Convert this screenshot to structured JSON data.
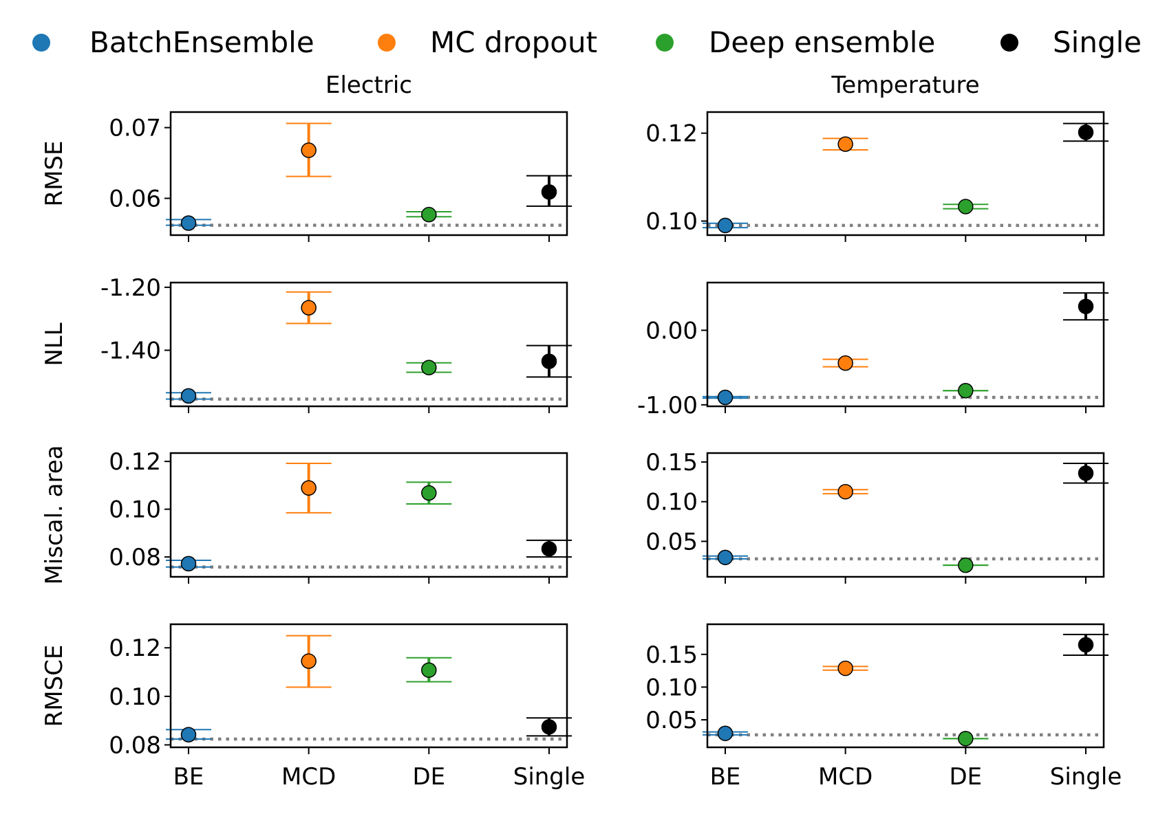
{
  "legend": {
    "placement": "top",
    "items": [
      {
        "label": "BatchEnsemble",
        "color": "#1f77b4"
      },
      {
        "label": "MC dropout",
        "color": "#ff7f0e"
      },
      {
        "label": "Deep ensemble",
        "color": "#2ca02c"
      },
      {
        "label": "Single",
        "color": "#000000"
      }
    ]
  },
  "columns": [
    "Electric",
    "Temperature"
  ],
  "chart_data": [
    {
      "type": "scatter",
      "column": "Electric",
      "ylabel": "RMSE",
      "categories": [
        "BE",
        "MCD",
        "DE",
        "Single"
      ],
      "values": [
        0.0565,
        0.0668,
        0.0577,
        0.0609
      ],
      "err_low": [
        0.0562,
        0.0631,
        0.0574,
        0.0589
      ],
      "err_high": [
        0.057,
        0.0706,
        0.0581,
        0.0632
      ],
      "yticks": [
        0.06,
        0.07
      ],
      "ytick_labels": [
        "0.06",
        "0.07"
      ],
      "ylim": [
        0.0548,
        0.0722
      ],
      "baseline": 0.0562
    },
    {
      "type": "scatter",
      "column": "Temperature",
      "ylabel": "",
      "categories": [
        "BE",
        "MCD",
        "DE",
        "Single"
      ],
      "values": [
        0.099,
        0.1175,
        0.1033,
        0.1202
      ],
      "err_low": [
        0.0985,
        0.1162,
        0.1028,
        0.1182
      ],
      "err_high": [
        0.0995,
        0.1188,
        0.1038,
        0.1222
      ],
      "yticks": [
        0.1,
        0.12
      ],
      "ytick_labels": [
        "0.10",
        "0.12"
      ],
      "ylim": [
        0.0968,
        0.1248
      ],
      "baseline": 0.099
    },
    {
      "type": "scatter",
      "column": "Electric",
      "ylabel": "NLL",
      "categories": [
        "BE",
        "MCD",
        "DE",
        "Single"
      ],
      "values": [
        -1.545,
        -1.265,
        -1.455,
        -1.435
      ],
      "err_low": [
        -1.555,
        -1.315,
        -1.47,
        -1.485
      ],
      "err_high": [
        -1.535,
        -1.215,
        -1.44,
        -1.385
      ],
      "yticks": [
        -1.2,
        -1.4
      ],
      "ytick_labels": [
        "-1.20",
        "-1.40"
      ],
      "ylim": [
        -1.578,
        -1.185
      ],
      "baseline": -1.555
    },
    {
      "type": "scatter",
      "column": "Temperature",
      "ylabel": "",
      "categories": [
        "BE",
        "MCD",
        "DE",
        "Single"
      ],
      "values": [
        -0.9,
        -0.44,
        -0.81,
        0.32
      ],
      "err_low": [
        -0.91,
        -0.49,
        -0.81,
        0.14
      ],
      "err_high": [
        -0.89,
        -0.39,
        -0.81,
        0.5
      ],
      "yticks": [
        0.0,
        -1.0
      ],
      "ytick_labels": [
        "0.00",
        "-1.00"
      ],
      "ylim": [
        -1.02,
        0.64
      ],
      "baseline": -0.9
    },
    {
      "type": "scatter",
      "column": "Electric",
      "ylabel": "Miscal. area",
      "categories": [
        "BE",
        "MCD",
        "DE",
        "Single"
      ],
      "values": [
        0.0772,
        0.1089,
        0.1068,
        0.0834
      ],
      "err_low": [
        0.0758,
        0.0985,
        0.1022,
        0.08
      ],
      "err_high": [
        0.0786,
        0.1192,
        0.1113,
        0.087
      ],
      "yticks": [
        0.08,
        0.1,
        0.12
      ],
      "ytick_labels": [
        "0.08",
        "0.10",
        "0.12"
      ],
      "ylim": [
        0.0717,
        0.1235
      ],
      "baseline": 0.0758
    },
    {
      "type": "scatter",
      "column": "Temperature",
      "ylabel": "",
      "categories": [
        "BE",
        "MCD",
        "DE",
        "Single"
      ],
      "values": [
        0.0297,
        0.1126,
        0.0199,
        0.1359
      ],
      "err_low": [
        0.0279,
        0.1101,
        0.0199,
        0.1235
      ],
      "err_high": [
        0.0315,
        0.1151,
        0.0199,
        0.1483
      ],
      "yticks": [
        0.05,
        0.1,
        0.15
      ],
      "ytick_labels": [
        "0.05",
        "0.10",
        "0.15"
      ],
      "ylim": [
        0.0053,
        0.1613
      ],
      "baseline": 0.0279
    },
    {
      "type": "scatter",
      "column": "Electric",
      "ylabel": "RMSCE",
      "categories": [
        "BE",
        "MCD",
        "DE",
        "Single"
      ],
      "values": [
        0.0842,
        0.1145,
        0.1108,
        0.0874
      ],
      "err_low": [
        0.0824,
        0.1038,
        0.106,
        0.0837
      ],
      "err_high": [
        0.0863,
        0.125,
        0.1159,
        0.0911
      ],
      "yticks": [
        0.08,
        0.1,
        0.12
      ],
      "ytick_labels": [
        "0.08",
        "0.10",
        "0.12"
      ],
      "ylim": [
        0.079,
        0.1297
      ],
      "baseline": 0.0824
    },
    {
      "type": "scatter",
      "column": "Temperature",
      "ylabel": "",
      "categories": [
        "BE",
        "MCD",
        "DE",
        "Single"
      ],
      "values": [
        0.0293,
        0.1287,
        0.0213,
        0.1646
      ],
      "err_low": [
        0.0271,
        0.1259,
        0.0213,
        0.1488
      ],
      "err_high": [
        0.0315,
        0.1315,
        0.0213,
        0.1804
      ],
      "yticks": [
        0.05,
        0.1,
        0.15
      ],
      "ytick_labels": [
        "0.05",
        "0.10",
        "0.15"
      ],
      "ylim": [
        0.008,
        0.196
      ],
      "baseline": 0.0271
    }
  ]
}
